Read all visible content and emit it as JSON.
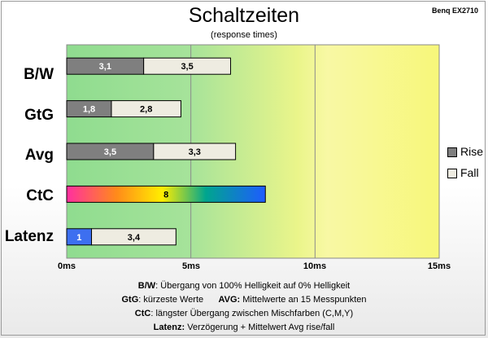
{
  "corner_label": "Benq EX2710",
  "notes": {
    "line1_key": "B/W",
    "line1_text": ":  Übergang von 100% Helligkeit auf 0% Helligkeit",
    "line2a_key": "GtG",
    "line2a_text": ": kürzeste  Werte",
    "line2b_key": "AVG:",
    "line2b_text": " Mittelwerte  an 15 Messpunkten",
    "line3_key": "CtC",
    "line3_text": ": längster Übergang  zwischen Mischfarben  (C,M,Y)",
    "line4_key": "Latenz:",
    "line4_text": " Verzögerung  + Mittelwert Avg rise/fall"
  },
  "colors": {
    "rise": "#7f7f7f",
    "fall": "#eeece1",
    "latency": "#3d6ff0",
    "zone_green": "#8fdc8f",
    "zone_yellow": "#f7f77a"
  },
  "chart_data": {
    "type": "bar",
    "orientation": "horizontal",
    "stacked": true,
    "title": "Schaltzeiten",
    "subtitle": "(response times)",
    "categories": [
      "B/W",
      "GtG",
      "Avg",
      "CtC",
      "Latenz"
    ],
    "x_ticks": [
      "0ms",
      "5ms",
      "10ms",
      "15ms"
    ],
    "xlim": [
      0,
      15
    ],
    "grid": true,
    "legend_position": "right",
    "series": [
      {
        "name": "Rise",
        "values": [
          3.1,
          1.8,
          3.5,
          null,
          1
        ],
        "labels": [
          "3,1",
          "1,8",
          "3,5",
          "",
          "1"
        ]
      },
      {
        "name": "Fall",
        "values": [
          3.5,
          2.8,
          3.3,
          null,
          3.4
        ],
        "labels": [
          "3,5",
          "2,8",
          "3,3",
          "",
          "3,4"
        ]
      },
      {
        "values": [
          null,
          null,
          null,
          8,
          null
        ],
        "labels": [
          "",
          "",
          "",
          "8",
          ""
        ]
      }
    ]
  }
}
